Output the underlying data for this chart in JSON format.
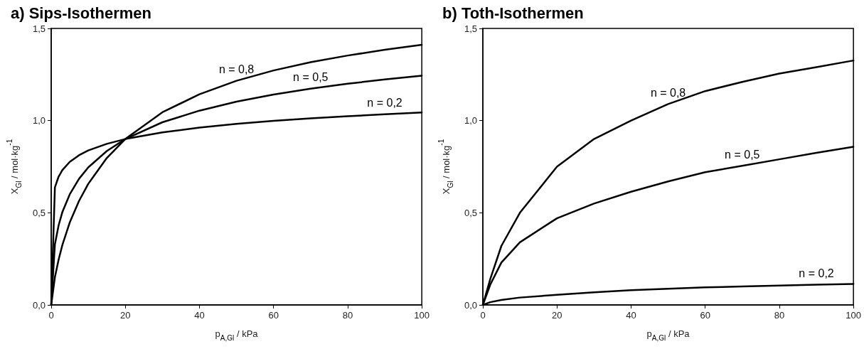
{
  "chart_data": [
    {
      "type": "line",
      "title": "a) Sips-Isothermen",
      "xlabel": "p$_{A,Gl}$ / kPa",
      "ylabel": "X$_{Gl}$ / mol·kg$^{-1}$",
      "x": [
        0,
        1,
        2,
        3,
        5,
        7.5,
        10,
        15,
        20,
        30,
        40,
        50,
        60,
        70,
        80,
        90,
        100
      ],
      "series": [
        {
          "name": "n = 0,8",
          "color": "#000000",
          "values": [
            0,
            0.15,
            0.246,
            0.324,
            0.447,
            0.564,
            0.657,
            0.797,
            0.9,
            1.045,
            1.143,
            1.216,
            1.272,
            1.317,
            1.353,
            1.384,
            1.411
          ]
        },
        {
          "name": "n = 0,5",
          "color": "#000000",
          "values": [
            0,
            0.329,
            0.432,
            0.503,
            0.6,
            0.684,
            0.746,
            0.835,
            0.9,
            0.991,
            1.054,
            1.103,
            1.141,
            1.173,
            1.2,
            1.223,
            1.244
          ]
        },
        {
          "name": "n = 0,2",
          "color": "#000000",
          "values": [
            0,
            0.638,
            0.696,
            0.731,
            0.776,
            0.812,
            0.838,
            0.874,
            0.9,
            0.936,
            0.962,
            0.982,
            0.999,
            1.012,
            1.024,
            1.034,
            1.044
          ]
        }
      ],
      "xlim": [
        0,
        100
      ],
      "xticks": [
        0,
        20,
        40,
        60,
        80,
        100
      ],
      "ylim": [
        0,
        1.5
      ],
      "yticks": [
        {
          "value": 0,
          "label": "0,0"
        },
        {
          "value": 0.5,
          "label": "0,5"
        },
        {
          "value": 1,
          "label": "1,0"
        },
        {
          "value": 1.5,
          "label": "1,5"
        }
      ],
      "grid": false,
      "marker": "none",
      "line_style": "solid"
    },
    {
      "type": "line",
      "title": "b) Toth-Isothermen",
      "xlabel": "p$_{A,Gl}$ / kPa",
      "ylabel": "X$_{Gl}$ / mol·kg$^{-1}$",
      "x": [
        0,
        2,
        5,
        10,
        20,
        30,
        40,
        50,
        60,
        70,
        80,
        90,
        100
      ],
      "series": [
        {
          "name": "n = 0,8",
          "color": "#000000",
          "values": [
            0,
            0.14,
            0.32,
            0.5,
            0.75,
            0.9,
            1.0,
            1.09,
            1.16,
            1.21,
            1.255,
            1.29,
            1.326
          ]
        },
        {
          "name": "n = 0,5",
          "color": "#000000",
          "values": [
            0,
            0.11,
            0.23,
            0.34,
            0.47,
            0.55,
            0.614,
            0.67,
            0.72,
            0.755,
            0.79,
            0.825,
            0.858
          ]
        },
        {
          "name": "n = 0,2",
          "color": "#000000",
          "values": [
            0,
            0.015,
            0.027,
            0.04,
            0.055,
            0.068,
            0.08,
            0.088,
            0.095,
            0.1,
            0.105,
            0.11,
            0.114
          ]
        }
      ],
      "xlim": [
        0,
        100
      ],
      "xticks": [
        0,
        20,
        40,
        60,
        80,
        100
      ],
      "ylim": [
        0,
        1.5
      ],
      "yticks": [
        {
          "value": 0,
          "label": "0,0"
        },
        {
          "value": 0.5,
          "label": "0,5"
        },
        {
          "value": 1,
          "label": "1,0"
        },
        {
          "value": 1.5,
          "label": "1,5"
        }
      ],
      "grid": false,
      "marker": "none",
      "line_style": "solid"
    }
  ]
}
